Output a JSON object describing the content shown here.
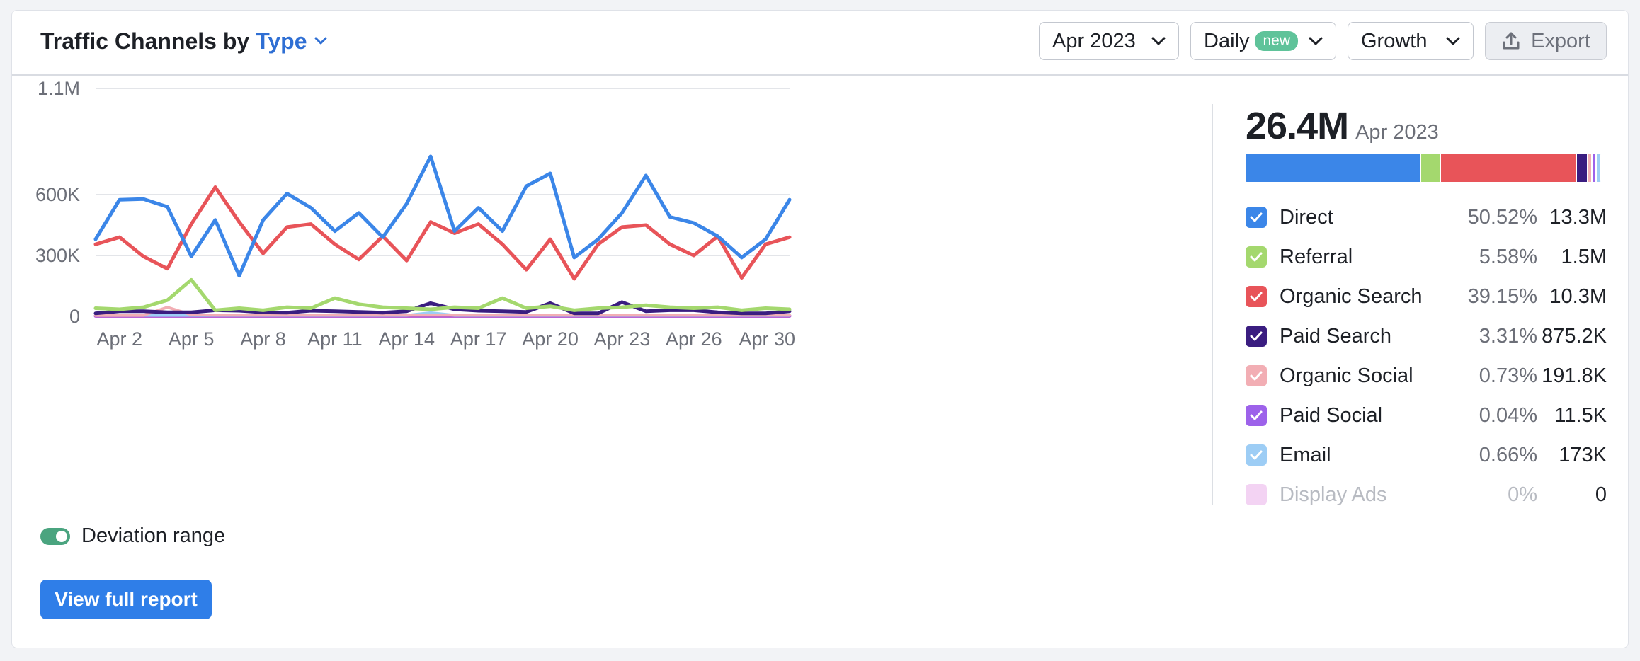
{
  "header": {
    "title": "Traffic Channels by",
    "type_label": "Type",
    "date_label": "Apr 2023",
    "granularity_label": "Daily",
    "new_badge": "new",
    "metric_label": "Growth",
    "export_label": "Export"
  },
  "summary": {
    "total": "26.4M",
    "period": "Apr 2023"
  },
  "legend": [
    {
      "name": "Direct",
      "pct": "50.52%",
      "value": "13.3M",
      "color": "#3b86e8",
      "share": 50.52,
      "checked": true
    },
    {
      "name": "Referral",
      "pct": "5.58%",
      "value": "1.5M",
      "color": "#a4d86e",
      "share": 5.58,
      "checked": true
    },
    {
      "name": "Organic Search",
      "pct": "39.15%",
      "value": "10.3M",
      "color": "#e85459",
      "share": 39.15,
      "checked": true
    },
    {
      "name": "Paid Search",
      "pct": "3.31%",
      "value": "875.2K",
      "color": "#3a1d80",
      "share": 3.31,
      "checked": true
    },
    {
      "name": "Organic Social",
      "pct": "0.73%",
      "value": "191.8K",
      "color": "#f2aeb4",
      "share": 0.73,
      "checked": true
    },
    {
      "name": "Paid Social",
      "pct": "0.04%",
      "value": "11.5K",
      "color": "#9d62ea",
      "share": 0.04,
      "checked": true
    },
    {
      "name": "Email",
      "pct": "0.66%",
      "value": "173K",
      "color": "#9dcdf5",
      "share": 0.66,
      "checked": true
    },
    {
      "name": "Display Ads",
      "pct": "0%",
      "value": "0",
      "color": "#f3d3f3",
      "share": 0,
      "checked": false
    }
  ],
  "footer": {
    "toggle_label": "Deviation range",
    "cta_label": "View full report"
  },
  "chart_data": {
    "type": "line",
    "y_ticks": [
      {
        "value": 0,
        "label": "0"
      },
      {
        "value": 300000,
        "label": "300K"
      },
      {
        "value": 600000,
        "label": "600K"
      },
      {
        "value": 1100000,
        "label": "1.1M"
      }
    ],
    "ylim": [
      0,
      1100000
    ],
    "x_tick_labels": [
      {
        "day": 2,
        "label": "Apr 2"
      },
      {
        "day": 5,
        "label": "Apr 5"
      },
      {
        "day": 8,
        "label": "Apr 8"
      },
      {
        "day": 11,
        "label": "Apr 11"
      },
      {
        "day": 14,
        "label": "Apr 14"
      },
      {
        "day": 17,
        "label": "Apr 17"
      },
      {
        "day": 20,
        "label": "Apr 20"
      },
      {
        "day": 23,
        "label": "Apr 23"
      },
      {
        "day": 26,
        "label": "Apr 26"
      },
      {
        "day": 30,
        "label": "Apr 30"
      }
    ],
    "days": [
      1,
      2,
      3,
      4,
      5,
      6,
      7,
      8,
      9,
      10,
      11,
      12,
      13,
      14,
      15,
      16,
      17,
      18,
      19,
      20,
      21,
      22,
      23,
      24,
      25,
      26,
      27,
      28,
      29,
      30
    ],
    "grid": true,
    "series": [
      {
        "name": "Direct",
        "color": "#3b86e8",
        "width": 5,
        "values": [
          380000,
          575000,
          578000,
          540000,
          295000,
          475000,
          200000,
          475000,
          605000,
          535000,
          420000,
          510000,
          390000,
          555000,
          780000,
          420000,
          535000,
          420000,
          640000,
          700000,
          290000,
          380000,
          510000,
          690000,
          490000,
          460000,
          395000,
          290000,
          380000,
          575000
        ]
      },
      {
        "name": "Organic Search",
        "color": "#e85459",
        "width": 5,
        "values": [
          355000,
          390000,
          295000,
          235000,
          455000,
          635000,
          465000,
          310000,
          440000,
          455000,
          355000,
          280000,
          395000,
          275000,
          465000,
          410000,
          455000,
          355000,
          230000,
          380000,
          185000,
          355000,
          440000,
          450000,
          355000,
          300000,
          395000,
          190000,
          355000,
          390000
        ]
      },
      {
        "name": "Referral",
        "color": "#a4d86e",
        "width": 5,
        "values": [
          40000,
          35000,
          45000,
          80000,
          180000,
          30000,
          40000,
          30000,
          45000,
          40000,
          90000,
          60000,
          45000,
          40000,
          35000,
          45000,
          40000,
          90000,
          40000,
          50000,
          30000,
          40000,
          45000,
          55000,
          45000,
          40000,
          45000,
          30000,
          40000,
          35000
        ]
      },
      {
        "name": "Paid Search",
        "color": "#3a1d80",
        "width": 5,
        "values": [
          15000,
          25000,
          25000,
          20000,
          20000,
          30000,
          28000,
          20000,
          18000,
          28000,
          25000,
          22000,
          18000,
          25000,
          65000,
          35000,
          28000,
          25000,
          22000,
          65000,
          15000,
          15000,
          70000,
          25000,
          30000,
          30000,
          20000,
          15000,
          15000,
          25000
        ]
      },
      {
        "name": "Organic Social",
        "color": "#f2aeb4",
        "width": 4,
        "values": [
          5000,
          5000,
          5000,
          45000,
          8000,
          6000,
          6000,
          6000,
          6000,
          6000,
          6000,
          6000,
          6000,
          6000,
          6000,
          6000,
          6000,
          6000,
          6000,
          6000,
          6000,
          6000,
          6000,
          6000,
          6000,
          6000,
          6000,
          6000,
          6000,
          6000
        ]
      },
      {
        "name": "Email",
        "color": "#9dcdf5",
        "width": 4,
        "values": [
          5000,
          5000,
          5000,
          5000,
          5000,
          5000,
          5000,
          5000,
          5000,
          5000,
          5000,
          5000,
          5000,
          5000,
          18000,
          5000,
          5000,
          5000,
          5000,
          5000,
          5000,
          5000,
          5000,
          5000,
          5000,
          5000,
          5000,
          5000,
          5000,
          5000
        ]
      },
      {
        "name": "Paid Social",
        "color": "#b04fd0",
        "width": 5,
        "values": [
          2000,
          2000,
          2000,
          2000,
          2000,
          2000,
          2000,
          2000,
          2000,
          2000,
          2000,
          2000,
          2000,
          2000,
          2000,
          2000,
          2000,
          2000,
          2000,
          2000,
          2000,
          2000,
          2000,
          2000,
          2000,
          2000,
          2000,
          2000,
          2000,
          2000
        ]
      }
    ]
  }
}
